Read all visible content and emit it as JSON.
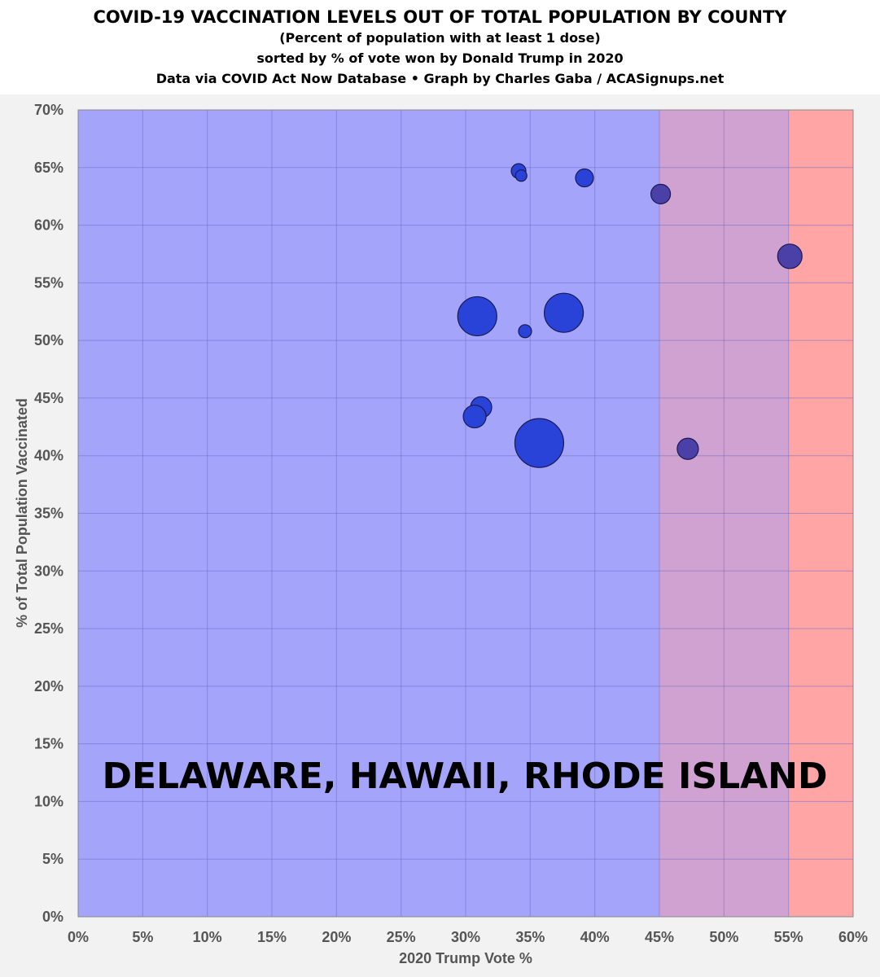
{
  "chart_data": {
    "type": "scatter",
    "title": "COVID-19 VACCINATION LEVELS OUT OF TOTAL POPULATION BY COUNTY",
    "subtitles": [
      "(Percent of population with at least 1 dose)",
      "sorted by % of vote won by Donald Trump in 2020",
      "Data via COVID Act Now Database • Graph by Charles Gaba / ACASignups.net"
    ],
    "xlabel": "2020 Trump Vote %",
    "ylabel": "% of Total Population Vaccinated",
    "xlim": [
      0,
      60
    ],
    "ylim": [
      0,
      70
    ],
    "x_ticks": [
      0,
      5,
      10,
      15,
      20,
      25,
      30,
      35,
      40,
      45,
      50,
      55,
      60
    ],
    "y_ticks": [
      0,
      5,
      10,
      15,
      20,
      25,
      30,
      35,
      40,
      45,
      50,
      55,
      60,
      65,
      70
    ],
    "x_tick_labels": [
      "0%",
      "5%",
      "10%",
      "15%",
      "20%",
      "25%",
      "30%",
      "35%",
      "40%",
      "45%",
      "50%",
      "55%",
      "60%"
    ],
    "y_tick_labels": [
      "0%",
      "5%",
      "10%",
      "15%",
      "20%",
      "25%",
      "30%",
      "35%",
      "40%",
      "45%",
      "50%",
      "55%",
      "60%",
      "65%",
      "70%"
    ],
    "grid": true,
    "background_bands": [
      {
        "from": 0,
        "to": 45,
        "color": "#a4a4fb"
      },
      {
        "from": 45,
        "to": 55,
        "color": "#d0a2d2"
      },
      {
        "from": 55,
        "to": 60,
        "color": "#ffa5a5"
      }
    ],
    "annotation": "DELAWARE, HAWAII, RHODE ISLAND",
    "bubble_colors": {
      "blue": "#2943d8",
      "purple": "#4b3fa8"
    },
    "points": [
      {
        "x": 34.1,
        "y": 64.7,
        "size": 9,
        "color": "blue"
      },
      {
        "x": 34.3,
        "y": 64.3,
        "size": 7,
        "color": "blue"
      },
      {
        "x": 39.2,
        "y": 64.1,
        "size": 11,
        "color": "blue"
      },
      {
        "x": 45.1,
        "y": 62.7,
        "size": 12,
        "color": "purple"
      },
      {
        "x": 55.1,
        "y": 57.3,
        "size": 15,
        "color": "purple"
      },
      {
        "x": 30.9,
        "y": 52.1,
        "size": 24,
        "color": "blue"
      },
      {
        "x": 37.6,
        "y": 52.4,
        "size": 24,
        "color": "blue"
      },
      {
        "x": 34.6,
        "y": 50.8,
        "size": 8,
        "color": "blue"
      },
      {
        "x": 31.2,
        "y": 44.2,
        "size": 13,
        "color": "blue"
      },
      {
        "x": 30.7,
        "y": 43.4,
        "size": 14,
        "color": "blue"
      },
      {
        "x": 35.7,
        "y": 41.1,
        "size": 30,
        "color": "blue"
      },
      {
        "x": 47.2,
        "y": 40.6,
        "size": 13,
        "color": "purple"
      }
    ]
  }
}
